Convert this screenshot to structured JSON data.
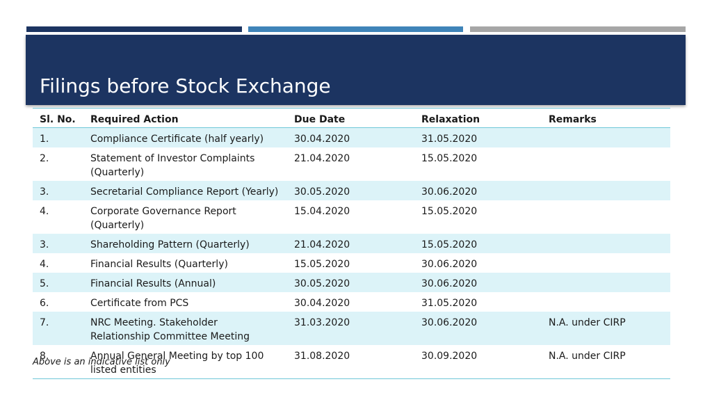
{
  "colors": {
    "title_band": "#1c3461",
    "accent_1": "#1c3461",
    "accent_2": "#3f84b8",
    "accent_3": "#a6a6a6",
    "row_band": "#dcf3f8",
    "rule": "#6fc7d8"
  },
  "slide": {
    "title": "Filings before Stock Exchange",
    "footnote": "Above is an indicative list only"
  },
  "table": {
    "headers": [
      "Sl. No.",
      "Required Action",
      "Due Date",
      "Relaxation",
      "Remarks"
    ],
    "rows": [
      [
        "1.",
        "Compliance Certificate (half yearly)",
        "30.04.2020",
        "31.05.2020",
        ""
      ],
      [
        "2.",
        "Statement of Investor Complaints (Quarterly)",
        "21.04.2020",
        "15.05.2020",
        ""
      ],
      [
        "3.",
        "Secretarial Compliance Report (Yearly)",
        "30.05.2020",
        "30.06.2020",
        ""
      ],
      [
        "4.",
        "Corporate Governance Report (Quarterly)",
        "15.04.2020",
        "15.05.2020",
        ""
      ],
      [
        "3.",
        "Shareholding Pattern (Quarterly)",
        "21.04.2020",
        "15.05.2020",
        ""
      ],
      [
        "4.",
        "Financial Results (Quarterly)",
        "15.05.2020",
        "30.06.2020",
        ""
      ],
      [
        "5.",
        "Financial Results (Annual)",
        "30.05.2020",
        "30.06.2020",
        ""
      ],
      [
        "6.",
        "Certificate from PCS",
        "30.04.2020",
        "31.05.2020",
        ""
      ],
      [
        "7.",
        "NRC Meeting. Stakeholder Relationship Committee Meeting",
        "31.03.2020",
        "30.06.2020",
        "N.A. under CIRP"
      ],
      [
        "8.",
        "Annual General Meeting by top 100 listed entities",
        "31.08.2020",
        "30.09.2020",
        "N.A. under CIRP"
      ]
    ]
  }
}
